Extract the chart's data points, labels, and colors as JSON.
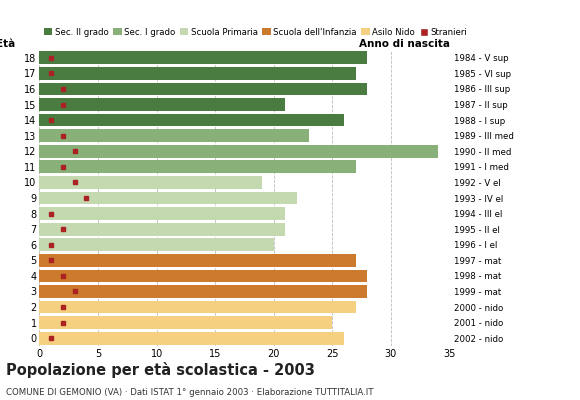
{
  "ages": [
    18,
    17,
    16,
    15,
    14,
    13,
    12,
    11,
    10,
    9,
    8,
    7,
    6,
    5,
    4,
    3,
    2,
    1,
    0
  ],
  "bar_values": [
    28,
    27,
    28,
    21,
    26,
    23,
    34,
    27,
    19,
    22,
    21,
    21,
    20,
    27,
    28,
    28,
    27,
    25,
    26
  ],
  "stranieri": [
    1,
    1,
    2,
    2,
    1,
    2,
    3,
    2,
    3,
    4,
    1,
    2,
    1,
    1,
    2,
    3,
    2,
    2,
    1
  ],
  "bar_colors": [
    "#4a7c42",
    "#4a7c42",
    "#4a7c42",
    "#4a7c42",
    "#4a7c42",
    "#8ab07a",
    "#8ab07a",
    "#8ab07a",
    "#c5d9b0",
    "#c5d9b0",
    "#c5d9b0",
    "#c5d9b0",
    "#c5d9b0",
    "#cc7a2e",
    "#cc7a2e",
    "#cc7a2e",
    "#f5d080",
    "#f5d080",
    "#f5d080"
  ],
  "anno_nascita": [
    "1984 - V sup",
    "1985 - VI sup",
    "1986 - III sup",
    "1987 - II sup",
    "1988 - I sup",
    "1989 - III med",
    "1990 - II med",
    "1991 - I med",
    "1992 - V el",
    "1993 - IV el",
    "1994 - III el",
    "1995 - II el",
    "1996 - I el",
    "1997 - mat",
    "1998 - mat",
    "1999 - mat",
    "2000 - nido",
    "2001 - nido",
    "2002 - nido"
  ],
  "legend_labels": [
    "Sec. II grado",
    "Sec. I grado",
    "Scuola Primaria",
    "Scuola dell'Infanzia",
    "Asilo Nido",
    "Stranieri"
  ],
  "legend_colors": [
    "#4a7c42",
    "#8ab07a",
    "#c5d9b0",
    "#cc7a2e",
    "#f5d080",
    "#aa2222"
  ],
  "stranieri_color": "#aa2222",
  "title": "Popolazione per età scolastica - 2003",
  "subtitle": "COMUNE DI GEMONIO (VA) · Dati ISTAT 1° gennaio 2003 · Elaborazione TUTTITALIA.IT",
  "xlim": [
    0,
    35
  ],
  "xticks": [
    0,
    5,
    10,
    15,
    20,
    25,
    30,
    35
  ],
  "background_color": "#ffffff",
  "grid_color": "#bbbbbb"
}
